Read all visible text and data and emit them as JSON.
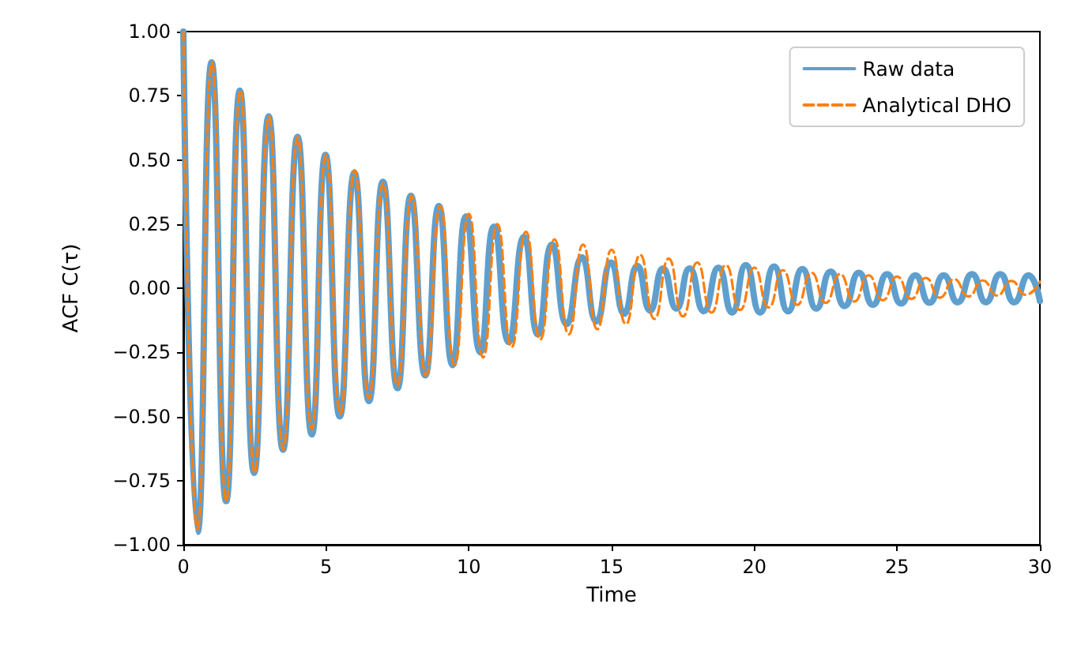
{
  "chart_data": {
    "type": "line",
    "xlabel": "Time",
    "ylabel": "ACF C(τ)",
    "xlim": [
      0,
      30
    ],
    "xticks": [
      0,
      5,
      10,
      15,
      20,
      25,
      30
    ],
    "ylim": [
      -1,
      1
    ],
    "yticks": [
      {
        "value": -1,
        "label": "−1.00"
      },
      {
        "value": -0.75,
        "label": "−0.75"
      },
      {
        "value": -0.5,
        "label": "−0.50"
      },
      {
        "value": -0.25,
        "label": "−0.25"
      },
      {
        "value": 0,
        "label": "0.00"
      },
      {
        "value": 0.25,
        "label": "0.25"
      },
      {
        "value": 0.5,
        "label": "0.50"
      },
      {
        "value": 0.75,
        "label": "0.75"
      },
      {
        "value": 1,
        "label": "1.00"
      }
    ],
    "grid": false,
    "legend": "top right",
    "marker": "none",
    "series": [
      {
        "name": "Raw data",
        "color": "#5f9fce",
        "line_style": "solid",
        "x": [
          0,
          0.5,
          0.99,
          1.5,
          1.98,
          2.48,
          2.99,
          3.49,
          4.0,
          4.5,
          4.98,
          5.48,
          5.99,
          6.5,
          6.99,
          7.5,
          7.97,
          8.47,
          8.95,
          9.43,
          9.9,
          10.4,
          10.88,
          11.4,
          11.93,
          12.42,
          12.91,
          13.43,
          13.96,
          14.47,
          14.98,
          15.44,
          15.9,
          16.35,
          16.8,
          17.27,
          17.73,
          18.23,
          18.74,
          19.22,
          19.7,
          20.2,
          20.69,
          21.18,
          21.68,
          22.17,
          22.67,
          23.16,
          23.66,
          24.15,
          24.65,
          25.14,
          25.64,
          26.13,
          26.63,
          27.12,
          27.62,
          28.11,
          28.61,
          29.1,
          29.6,
          30
        ],
        "values": [
          1.0,
          -0.95,
          0.88,
          -0.83,
          0.77,
          -0.72,
          0.67,
          -0.63,
          0.59,
          -0.57,
          0.52,
          -0.5,
          0.45,
          -0.44,
          0.415,
          -0.39,
          0.36,
          -0.34,
          0.32,
          -0.3,
          0.28,
          -0.25,
          0.24,
          -0.21,
          0.2,
          -0.18,
          0.17,
          -0.14,
          0.12,
          -0.13,
          0.1,
          -0.1,
          0.087,
          -0.087,
          0.077,
          -0.08,
          0.077,
          -0.09,
          0.08,
          -0.095,
          0.09,
          -0.095,
          0.085,
          -0.09,
          0.075,
          -0.08,
          0.065,
          -0.07,
          0.06,
          -0.065,
          0.055,
          -0.06,
          0.05,
          -0.057,
          0.05,
          -0.055,
          0.055,
          -0.055,
          0.055,
          -0.055,
          0.05,
          -0.05
        ]
      },
      {
        "name": "Analytical DHO",
        "color": "#ff7f0e",
        "line_style": "dashed",
        "x": [
          0,
          0.5,
          1,
          1.5,
          2,
          2.5,
          3,
          3.5,
          4,
          4.5,
          5,
          5.5,
          6,
          6.5,
          7,
          7.5,
          8,
          8.5,
          9,
          9.5,
          10,
          10.5,
          11,
          11.5,
          12,
          12.5,
          13,
          13.5,
          14,
          14.5,
          15,
          15.5,
          16,
          16.5,
          17,
          17.5,
          18,
          18.5,
          19,
          19.5,
          20,
          20.5,
          21,
          21.5,
          22,
          22.5,
          23,
          23.5,
          24,
          24.5,
          25,
          25.5,
          26,
          26.5,
          27,
          27.5,
          28,
          28.5,
          29,
          29.5,
          30
        ],
        "values": [
          1.0,
          -0.94,
          0.88,
          -0.83,
          0.77,
          -0.72,
          0.67,
          -0.63,
          0.59,
          -0.55,
          0.52,
          -0.49,
          0.46,
          -0.43,
          0.41,
          -0.38,
          0.36,
          -0.34,
          0.32,
          -0.3,
          0.29,
          -0.27,
          0.25,
          -0.23,
          0.22,
          -0.2,
          0.19,
          -0.18,
          0.17,
          -0.16,
          0.15,
          -0.14,
          0.13,
          -0.12,
          0.115,
          -0.11,
          0.1,
          -0.095,
          0.09,
          -0.085,
          0.08,
          -0.075,
          0.07,
          -0.065,
          0.06,
          -0.057,
          0.055,
          -0.052,
          0.05,
          -0.047,
          0.045,
          -0.042,
          0.04,
          -0.037,
          0.035,
          -0.032,
          0.03,
          -0.029,
          0.028,
          -0.026,
          0.025
        ]
      }
    ]
  }
}
